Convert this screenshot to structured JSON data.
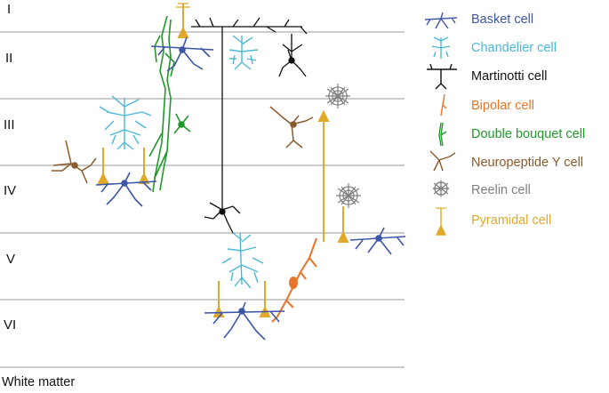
{
  "layers": [
    "I",
    "II",
    "III",
    "IV",
    "V",
    "VI"
  ],
  "white_matter": "White matter",
  "legend": [
    {
      "label": "Basket cell",
      "color": "#3d56a8",
      "icon": "basket-cell-icon"
    },
    {
      "label": "Chandelier cell",
      "color": "#4bb8d6",
      "icon": "chandelier-cell-icon"
    },
    {
      "label": "Martinotti cell",
      "color": "#111111",
      "icon": "martinotti-cell-icon"
    },
    {
      "label": "Bipolar cell",
      "color": "#e8742a",
      "icon": "bipolar-cell-icon"
    },
    {
      "label": "Double bouquet cell",
      "color": "#1f9a2a",
      "icon": "double-bouquet-cell-icon"
    },
    {
      "label": "Neuropeptide Y cell",
      "color": "#8a5a2b",
      "icon": "neuropeptide-y-cell-icon"
    },
    {
      "label": "Reelin cell",
      "color": "#808080",
      "icon": "reelin-cell-icon"
    },
    {
      "label": "Pyramidal cell",
      "color": "#e0a92a",
      "icon": "pyramidal-cell-icon"
    }
  ]
}
